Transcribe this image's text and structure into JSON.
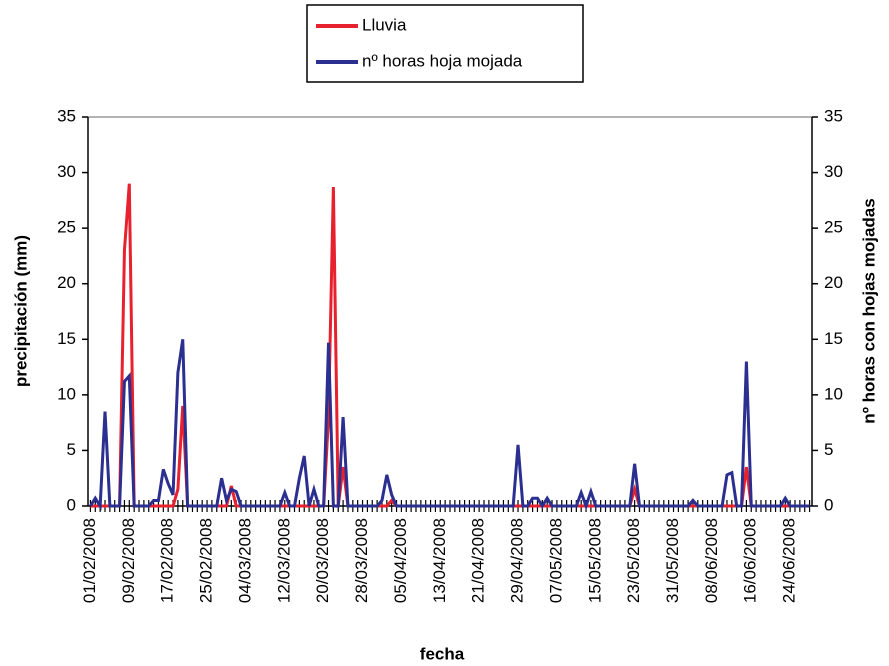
{
  "chart_data": {
    "type": "line",
    "xlabel": "fecha",
    "ylabel": "precipitación (mm)",
    "y2label": "nº horas con hojas mojadas",
    "categories": [
      "01/02/2008",
      null,
      null,
      null,
      null,
      null,
      null,
      null,
      "09/02/2008",
      null,
      null,
      null,
      null,
      null,
      null,
      null,
      "17/02/2008",
      null,
      null,
      null,
      null,
      null,
      null,
      null,
      "25/02/2008",
      null,
      null,
      null,
      null,
      null,
      null,
      null,
      "04/03/2008",
      null,
      null,
      null,
      null,
      null,
      null,
      null,
      "12/03/2008",
      null,
      null,
      null,
      null,
      null,
      null,
      null,
      "20/03/2008",
      null,
      null,
      null,
      null,
      null,
      null,
      null,
      "28/03/2008",
      null,
      null,
      null,
      null,
      null,
      null,
      null,
      "05/04/2008",
      null,
      null,
      null,
      null,
      null,
      null,
      null,
      "13/04/2008",
      null,
      null,
      null,
      null,
      null,
      null,
      null,
      "21/04/2008",
      null,
      null,
      null,
      null,
      null,
      null,
      null,
      "29/04/2008",
      null,
      null,
      null,
      null,
      null,
      null,
      null,
      "07/05/2008",
      null,
      null,
      null,
      null,
      null,
      null,
      null,
      "15/05/2008",
      null,
      null,
      null,
      null,
      null,
      null,
      null,
      "23/05/2008",
      null,
      null,
      null,
      null,
      null,
      null,
      null,
      "31/05/2008",
      null,
      null,
      null,
      null,
      null,
      null,
      null,
      "08/06/2008",
      null,
      null,
      null,
      null,
      null,
      null,
      null,
      "16/06/2008",
      null,
      null,
      null,
      null,
      null,
      null,
      null,
      "24/06/2008",
      null,
      null,
      null,
      null
    ],
    "series": [
      {
        "name": "Lluvia",
        "color": "#e8212e",
        "values": [
          0,
          0,
          0,
          0,
          0,
          0,
          0,
          23,
          29,
          0,
          0,
          0,
          0,
          0,
          0,
          0,
          0,
          0,
          1.5,
          9,
          0,
          0,
          0,
          0,
          0,
          0,
          0,
          0,
          0,
          1.8,
          0,
          0,
          0,
          0,
          0,
          0,
          0,
          0,
          0,
          0,
          0,
          0,
          0,
          0,
          0,
          0,
          0,
          0,
          0,
          8,
          28.7,
          0,
          3.5,
          0,
          0,
          0,
          0,
          0,
          0,
          0,
          0,
          0,
          0.5,
          0,
          0,
          0,
          0,
          0,
          0,
          0,
          0,
          0,
          0,
          0,
          0,
          0,
          0,
          0,
          0,
          0,
          0,
          0,
          0,
          0,
          0,
          0,
          0,
          0,
          0,
          0,
          0,
          0,
          0,
          0,
          0,
          0,
          0,
          0,
          0,
          0,
          0,
          0,
          0,
          0,
          0,
          0,
          0,
          0,
          0,
          0,
          0,
          0,
          1.5,
          0,
          0,
          0,
          0,
          0,
          0,
          0,
          0,
          0,
          0,
          0,
          0,
          0,
          0,
          0,
          0,
          0,
          0,
          0,
          0,
          0,
          0,
          3.5,
          0,
          0,
          0,
          0,
          0,
          0,
          0,
          0,
          0,
          0,
          0,
          0,
          0
        ]
      },
      {
        "name": "nº horas hoja mojada",
        "color": "#2b2f8f",
        "axis": "y2",
        "values": [
          0,
          0.7,
          0,
          8.5,
          0,
          0,
          0,
          11.2,
          11.7,
          0,
          0,
          0,
          0,
          0.5,
          0.5,
          3.3,
          2,
          1,
          12,
          15,
          0,
          0,
          0,
          0,
          0,
          0,
          0,
          2.5,
          0.5,
          1.5,
          1.3,
          0,
          0,
          0,
          0,
          0,
          0,
          0,
          0,
          0,
          1.2,
          0,
          0,
          2.5,
          4.5,
          0,
          1.5,
          0,
          0,
          14.7,
          0,
          0,
          8,
          0,
          0,
          0,
          0,
          0,
          0,
          0,
          0.5,
          2.8,
          1,
          0,
          0,
          0,
          0,
          0,
          0,
          0,
          0,
          0,
          0,
          0,
          0,
          0,
          0,
          0,
          0,
          0,
          0,
          0,
          0,
          0,
          0,
          0,
          0,
          0,
          5.5,
          0,
          0,
          0.7,
          0.7,
          0,
          0.7,
          0,
          0,
          0,
          0,
          0,
          0,
          1.2,
          0,
          1.3,
          0,
          0,
          0,
          0,
          0,
          0,
          0,
          0,
          3.8,
          0,
          0,
          0,
          0,
          0,
          0,
          0,
          0,
          0,
          0,
          0,
          0.5,
          0,
          0,
          0,
          0,
          0,
          0,
          2.8,
          3,
          0,
          0,
          13,
          0,
          0,
          0,
          0,
          0,
          0,
          0,
          0.7,
          0,
          0,
          0,
          0,
          0
        ]
      }
    ],
    "ylim": [
      0,
      35
    ],
    "yticks": [
      0,
      5,
      10,
      15,
      20,
      25,
      30,
      35
    ],
    "y2lim": [
      0,
      35
    ],
    "y2ticks": [
      0,
      5,
      10,
      15,
      20,
      25,
      30,
      35
    ],
    "grid": false,
    "legend": "top"
  }
}
